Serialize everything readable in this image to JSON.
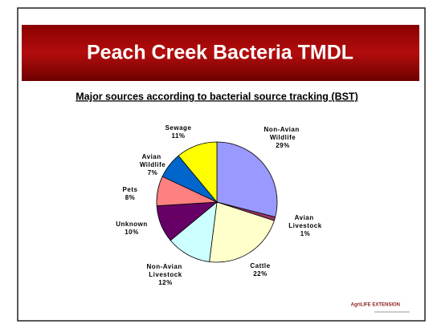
{
  "title": "Peach Creek Bacteria TMDL",
  "logo": "AgriLIFE EXTENSION",
  "chart_data": {
    "type": "pie",
    "title": "Major sources according to bacterial source tracking (BST)",
    "categories": [
      "Non-Avian Wildlife",
      "Avian Livestock",
      "Cattle",
      "Non-Avian Livestock",
      "Unknown",
      "Pets",
      "Avian Wildlife",
      "Sewage"
    ],
    "values": [
      29,
      1,
      22,
      12,
      10,
      8,
      7,
      11
    ],
    "value_labels": [
      "29%",
      "1%",
      "22%",
      "12%",
      "10%",
      "8%",
      "7%",
      "11%"
    ],
    "colors": [
      "#9999ff",
      "#993366",
      "#ffffcc",
      "#ccffff",
      "#660066",
      "#ff8080",
      "#0066cc",
      "#ffff00"
    ]
  }
}
